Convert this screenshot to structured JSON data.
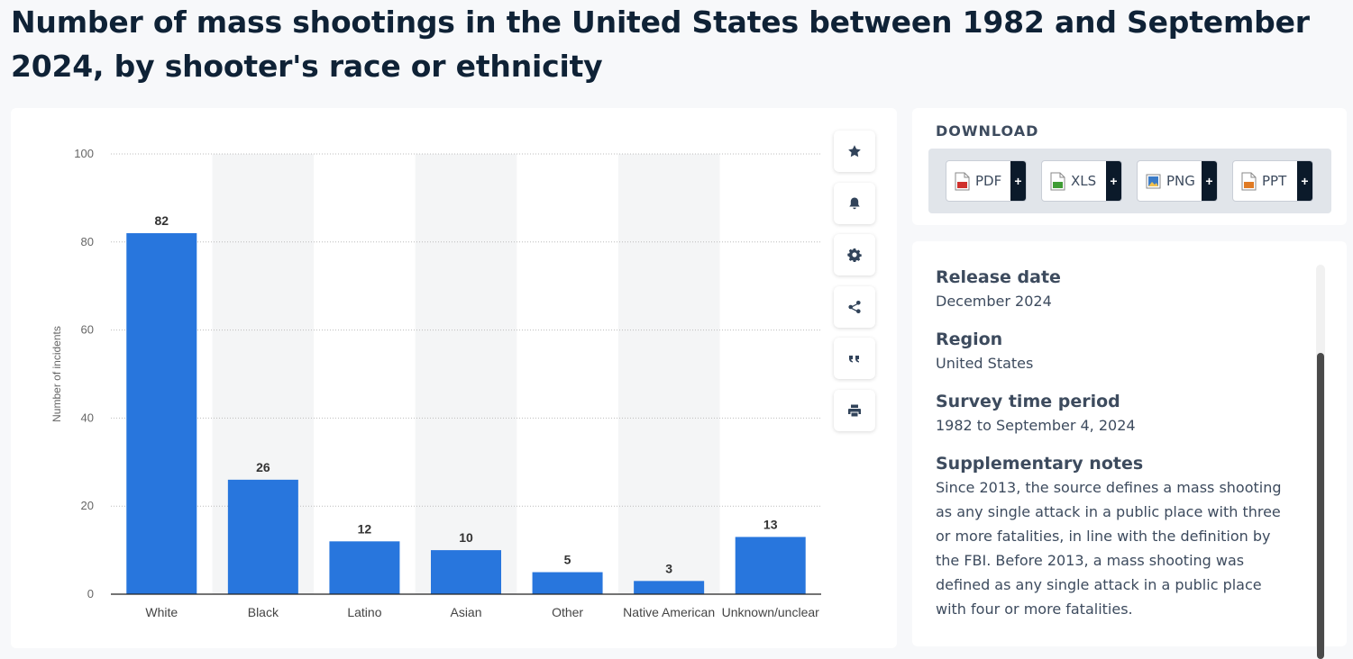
{
  "page": {
    "title": "Number of mass shootings in the United States between 1982 and September 2024, by shooter's race or ethnicity"
  },
  "chart_data": {
    "type": "bar",
    "categories": [
      "White",
      "Black",
      "Latino",
      "Asian",
      "Other",
      "Native American",
      "Unknown/unclear"
    ],
    "values": [
      82,
      26,
      12,
      10,
      5,
      3,
      13
    ],
    "title": "",
    "xlabel": "",
    "ylabel": "Number of incidents",
    "ylim": [
      0,
      100
    ],
    "yticks": [
      0,
      20,
      40,
      60,
      80,
      100
    ],
    "grid": true,
    "bar_color": "#2876dd",
    "stripe_color": "#f4f5f6"
  },
  "actions": [
    {
      "name": "favorite-button",
      "icon": "star-icon"
    },
    {
      "name": "notification-button",
      "icon": "bell-icon"
    },
    {
      "name": "settings-button",
      "icon": "gear-icon"
    },
    {
      "name": "share-button",
      "icon": "share-icon"
    },
    {
      "name": "cite-button",
      "icon": "quote-icon"
    },
    {
      "name": "print-button",
      "icon": "print-icon"
    }
  ],
  "download": {
    "title": "DOWNLOAD",
    "buttons": [
      {
        "label": "PDF",
        "plus": "+",
        "icon": "pdf-file-icon",
        "color": "#d0312d"
      },
      {
        "label": "XLS",
        "plus": "+",
        "icon": "xls-file-icon",
        "color": "#3f9c35"
      },
      {
        "label": "PNG",
        "plus": "+",
        "icon": "png-file-icon",
        "color": "#3b7bc7"
      },
      {
        "label": "PPT",
        "plus": "+",
        "icon": "ppt-file-icon",
        "color": "#e07b24"
      }
    ]
  },
  "info": {
    "release_label": "Release date",
    "release_value": "December 2024",
    "region_label": "Region",
    "region_value": "United States",
    "period_label": "Survey time period",
    "period_value": "1982 to September 4, 2024",
    "notes_label": "Supplementary notes",
    "notes_value": "Since 2013, the source defines a mass shooting as any single attack in a public place with three or more fatalities, in line with the definition by the FBI. Before 2013, a mass shooting was defined as any single attack in a public place with four or more fatalities."
  }
}
